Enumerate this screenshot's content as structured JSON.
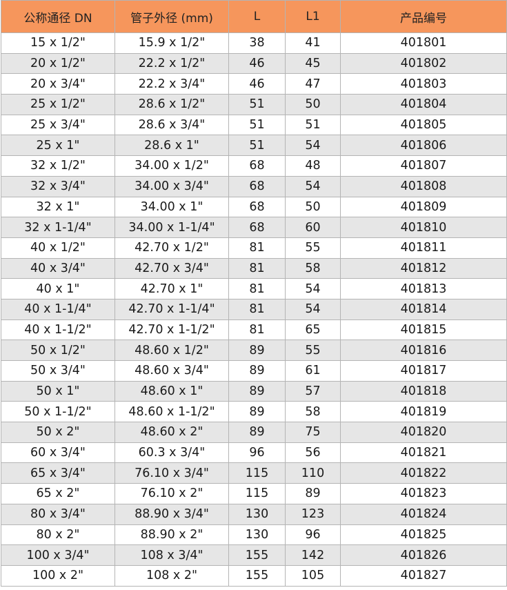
{
  "colors": {
    "header_bg": "#f6965c",
    "alt_row_bg": "#e6e6e6",
    "border": "#b4b4b4"
  },
  "headers": [
    "公称通径 DN",
    "管子外径 (mm)",
    "L",
    "L1",
    "产品编号"
  ],
  "rows": [
    [
      "15 x 1/2\"",
      "15.9 x 1/2\"",
      "38",
      "41",
      "401801"
    ],
    [
      "20 x 1/2\"",
      "22.2 x 1/2\"",
      "46",
      "45",
      "401802"
    ],
    [
      "20 x 3/4\"",
      "22.2 x 3/4\"",
      "46",
      "47",
      "401803"
    ],
    [
      "25 x 1/2\"",
      "28.6 x 1/2\"",
      "51",
      "50",
      "401804"
    ],
    [
      "25 x 3/4\"",
      "28.6 x 3/4\"",
      "51",
      "51",
      "401805"
    ],
    [
      "25 x 1\"",
      "28.6 x 1\"",
      "51",
      "54",
      "401806"
    ],
    [
      "32 x 1/2\"",
      "34.00 x 1/2\"",
      "68",
      "48",
      "401807"
    ],
    [
      "32 x 3/4\"",
      "34.00 x 3/4\"",
      "68",
      "54",
      "401808"
    ],
    [
      "32 x 1\"",
      "34.00 x 1\"",
      "68",
      "50",
      "401809"
    ],
    [
      "32 x 1-1/4\"",
      "34.00 x 1-1/4\"",
      "68",
      "60",
      "401810"
    ],
    [
      "40 x 1/2\"",
      "42.70 x 1/2\"",
      "81",
      "55",
      "401811"
    ],
    [
      "40 x 3/4\"",
      "42.70 x 3/4\"",
      "81",
      "58",
      "401812"
    ],
    [
      "40 x 1\"",
      "42.70 x 1\"",
      "81",
      "54",
      "401813"
    ],
    [
      "40 x 1-1/4\"",
      "42.70 x 1-1/4\"",
      "81",
      "54",
      "401814"
    ],
    [
      "40 x 1-1/2\"",
      "42.70 x 1-1/2\"",
      "81",
      "65",
      "401815"
    ],
    [
      "50 x 1/2\"",
      "48.60 x 1/2\"",
      "89",
      "55",
      "401816"
    ],
    [
      "50 x 3/4\"",
      "48.60 x 3/4\"",
      "89",
      "61",
      "401817"
    ],
    [
      "50 x 1\"",
      "48.60 x 1\"",
      "89",
      "57",
      "401818"
    ],
    [
      "50 x 1-1/2\"",
      "48.60 x 1-1/2\"",
      "89",
      "58",
      "401819"
    ],
    [
      "50 x 2\"",
      "48.60 x 2\"",
      "89",
      "75",
      "401820"
    ],
    [
      "60 x 3/4\"",
      "60.3 x 3/4\"",
      "96",
      "56",
      "401821"
    ],
    [
      "65 x 3/4\"",
      "76.10 x 3/4\"",
      "115",
      "110",
      "401822"
    ],
    [
      "65 x 2\"",
      "76.10 x 2\"",
      "115",
      "89",
      "401823"
    ],
    [
      "80 x 3/4\"",
      "88.90 x 3/4\"",
      "130",
      "123",
      "401824"
    ],
    [
      "80 x 2\"",
      "88.90 x 2\"",
      "130",
      "96",
      "401825"
    ],
    [
      "100 x 3/4\"",
      "108 x 3/4\"",
      "155",
      "142",
      "401826"
    ],
    [
      "100 x 2\"",
      "108 x 2\"",
      "155",
      "105",
      "401827"
    ]
  ]
}
